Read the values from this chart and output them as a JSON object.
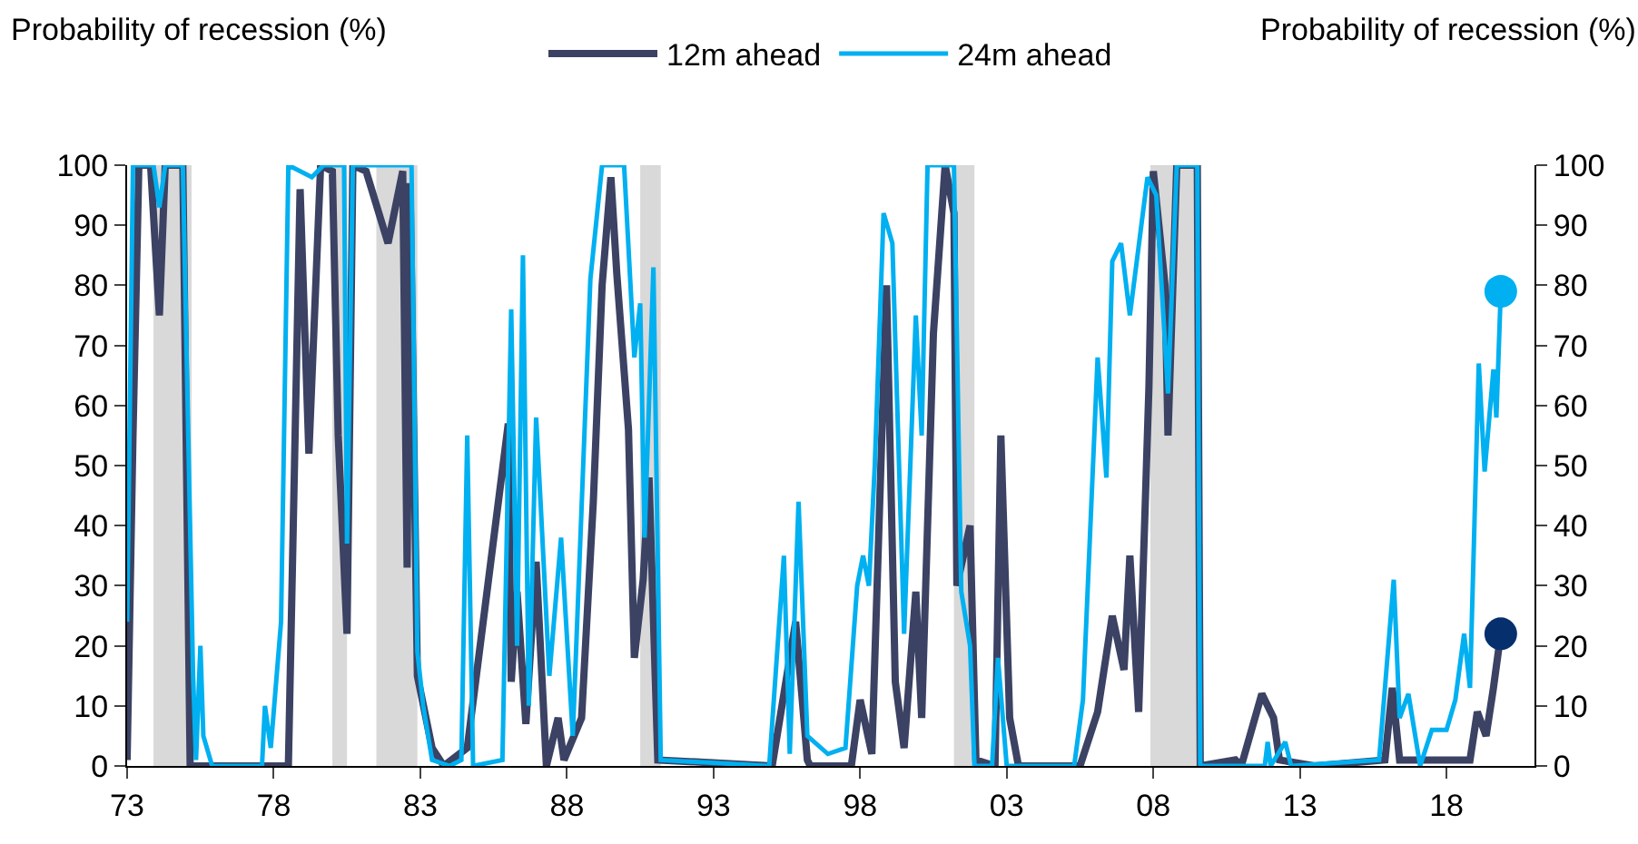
{
  "chart_data": {
    "type": "line",
    "ylabel": "Probability of recession (%)",
    "y2label": "Probability of recession (%)",
    "xlim": [
      1973,
      2021
    ],
    "xticks": [
      {
        "value": 1973,
        "label": "73"
      },
      {
        "value": 1978,
        "label": "78"
      },
      {
        "value": 1983,
        "label": "83"
      },
      {
        "value": 1988,
        "label": "88"
      },
      {
        "value": 1993,
        "label": "93"
      },
      {
        "value": 1998,
        "label": "98"
      },
      {
        "value": 2003,
        "label": "03"
      },
      {
        "value": 2008,
        "label": "08"
      },
      {
        "value": 2013,
        "label": "13"
      },
      {
        "value": 2018,
        "label": "18"
      }
    ],
    "ylim": [
      0,
      100
    ],
    "yticks": [
      0,
      10,
      20,
      30,
      40,
      50,
      60,
      70,
      80,
      90,
      100
    ],
    "y2lim": [
      0,
      100
    ],
    "y2ticks": [
      0,
      10,
      20,
      30,
      40,
      50,
      60,
      70,
      80,
      90,
      100
    ],
    "grid": false,
    "legend": "top",
    "marker": "none",
    "line_style": "solid",
    "bands": [
      {
        "axis": "x",
        "from": 1973.9,
        "to": 1975.2,
        "color": "#d9d9d9"
      },
      {
        "axis": "x",
        "from": 1980.0,
        "to": 1980.5,
        "color": "#d9d9d9"
      },
      {
        "axis": "x",
        "from": 1981.5,
        "to": 1982.9,
        "color": "#d9d9d9"
      },
      {
        "axis": "x",
        "from": 1990.5,
        "to": 1991.2,
        "color": "#d9d9d9"
      },
      {
        "axis": "x",
        "from": 2001.2,
        "to": 2001.9,
        "color": "#d9d9d9"
      },
      {
        "axis": "x",
        "from": 2007.9,
        "to": 2009.5,
        "color": "#d9d9d9"
      }
    ],
    "series": [
      {
        "name": "12m ahead",
        "color": "#3b4263",
        "x": [
          1973.0,
          1973.2,
          1973.4,
          1973.8,
          1974.1,
          1974.3,
          1974.9,
          1975.15,
          1978.5,
          1978.9,
          1979.2,
          1979.6,
          1980.0,
          1980.2,
          1980.5,
          1980.7,
          1981.15,
          1981.9,
          1982.4,
          1982.55,
          1982.65,
          1982.9,
          1983.4,
          1983.8,
          1984.6,
          1986.0,
          1986.1,
          1986.3,
          1986.6,
          1986.95,
          1987.3,
          1987.7,
          1987.9,
          1988.5,
          1988.9,
          1989.2,
          1989.5,
          1989.7,
          1990.1,
          1990.3,
          1990.6,
          1990.8,
          1991.1,
          1995.0,
          1995.8,
          1996.2,
          1996.3,
          1997.7,
          1998.0,
          1998.4,
          1998.9,
          1999.2,
          1999.5,
          1999.9,
          2000.1,
          2000.5,
          2000.9,
          2001.2,
          2001.3,
          2001.75,
          2001.95,
          2002.6,
          2002.8,
          2003.1,
          2003.4,
          2005.5,
          2006.1,
          2006.6,
          2007.0,
          2007.2,
          2007.5,
          2007.85,
          2008.0,
          2008.4,
          2008.5,
          2008.8,
          2009.5,
          2009.6,
          2010.8,
          2011.0,
          2011.7,
          2012.1,
          2012.3,
          2013.5,
          2015.9,
          2016.15,
          2016.4,
          2018.8,
          2019.05,
          2019.35,
          2019.6,
          2019.85
        ],
        "values": [
          1,
          55,
          100,
          100,
          75,
          100,
          100,
          0,
          0,
          96,
          52,
          100,
          99,
          55,
          22,
          100,
          99,
          87,
          99,
          33,
          97,
          15,
          3,
          0,
          3,
          57,
          14,
          29,
          7,
          34,
          0,
          8,
          1,
          8,
          44,
          80,
          98,
          82,
          56,
          18,
          31,
          48,
          1,
          0,
          24,
          1,
          0,
          0,
          11,
          2,
          80,
          14,
          3,
          29,
          8,
          72,
          100,
          92,
          30,
          40,
          1,
          0,
          55,
          8,
          0,
          0,
          9,
          25,
          16,
          35,
          9,
          63,
          99,
          80,
          55,
          100,
          100,
          0,
          1,
          0,
          12,
          8,
          1,
          0,
          1,
          13,
          1,
          1,
          9,
          5,
          13,
          22
        ]
      },
      {
        "name": "24m ahead",
        "color": "#00b0f0",
        "x": [
          1973.0,
          1973.2,
          1973.9,
          1974.1,
          1974.3,
          1974.9,
          1975.25,
          1975.35,
          1975.5,
          1975.6,
          1975.9,
          1977.6,
          1977.7,
          1977.9,
          1978.25,
          1978.5,
          1979.3,
          1979.7,
          1980.4,
          1980.5,
          1980.7,
          1982.7,
          1982.9,
          1983.1,
          1983.4,
          1984.0,
          1984.4,
          1984.6,
          1984.8,
          1985.8,
          1986.1,
          1986.3,
          1986.5,
          1986.7,
          1986.95,
          1987.1,
          1987.4,
          1987.8,
          1988.2,
          1988.8,
          1989.2,
          1989.95,
          1990.3,
          1990.5,
          1990.65,
          1990.95,
          1991.2,
          1994.9,
          1995.4,
          1995.6,
          1995.9,
          1996.2,
          1996.9,
          1997.5,
          1997.9,
          1998.1,
          1998.3,
          1998.5,
          1998.8,
          1999.1,
          1999.5,
          1999.9,
          2000.1,
          2000.3,
          2001.2,
          2001.45,
          2001.75,
          2001.9,
          2002.5,
          2002.7,
          2003.0,
          2005.3,
          2005.6,
          2006.1,
          2006.4,
          2006.6,
          2006.9,
          2007.2,
          2007.8,
          2008.1,
          2008.5,
          2008.8,
          2009.5,
          2009.6,
          2011.8,
          2011.9,
          2012.0,
          2012.5,
          2012.7,
          2015.7,
          2016.2,
          2016.4,
          2016.7,
          2017.1,
          2017.5,
          2018.0,
          2018.3,
          2018.6,
          2018.8,
          2019.1,
          2019.3,
          2019.6,
          2019.7,
          2019.85
        ],
        "values": [
          24,
          100,
          100,
          93,
          100,
          100,
          15,
          1,
          20,
          5,
          0,
          0,
          10,
          3,
          24,
          100,
          98,
          100,
          100,
          37,
          100,
          100,
          19,
          10,
          1,
          0,
          1,
          55,
          0,
          1,
          76,
          20,
          85,
          10,
          58,
          44,
          15,
          38,
          5,
          81,
          100,
          100,
          68,
          77,
          38,
          83,
          1,
          0,
          35,
          2,
          44,
          5,
          2,
          3,
          30,
          35,
          30,
          50,
          92,
          87,
          22,
          75,
          55,
          100,
          100,
          29,
          20,
          0,
          0,
          18,
          0,
          0,
          11,
          68,
          48,
          84,
          87,
          75,
          98,
          95,
          62,
          100,
          100,
          0,
          0,
          4,
          0,
          4,
          0,
          1,
          31,
          8,
          12,
          0,
          6,
          6,
          11,
          22,
          13,
          67,
          49,
          66,
          58,
          79
        ]
      },
      {
        "type": "scatter",
        "marker": "circle",
        "axis": "y2",
        "color": "#00b0f0",
        "x": [
          2019.85
        ],
        "values": [
          79
        ]
      },
      {
        "type": "scatter",
        "marker": "circle",
        "axis": "y2",
        "color": "#062f6e",
        "x": [
          2019.85
        ],
        "values": [
          22
        ]
      }
    ]
  }
}
